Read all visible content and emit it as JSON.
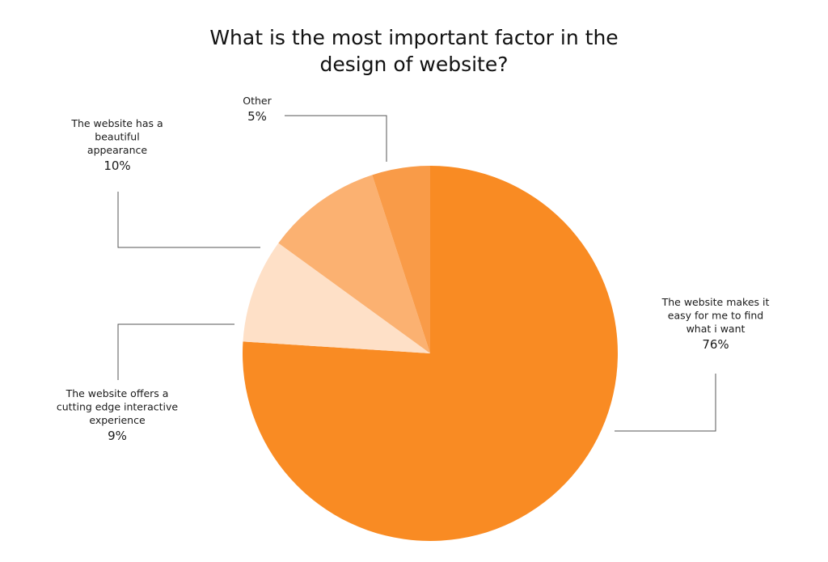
{
  "chart_data": {
    "type": "pie",
    "title": [
      "What is the most important factor in the",
      "design of website?"
    ],
    "slices": [
      {
        "name_lines": [
          "The website makes it",
          "easy for me to find",
          "what i want"
        ],
        "value": 76,
        "value_label": "76%",
        "color": "#F98B23"
      },
      {
        "name_lines": [
          "The website offers a",
          "cutting edge interactive",
          "experience"
        ],
        "value": 9,
        "value_label": "9%",
        "color": "#FEE0C7"
      },
      {
        "name_lines": [
          "The website has a",
          "beautiful",
          "appearance"
        ],
        "value": 10,
        "value_label": "10%",
        "color": "#FBB171"
      },
      {
        "name_lines": [
          "Other"
        ],
        "value": 5,
        "value_label": "5%",
        "color": "#F99B48"
      }
    ],
    "start": "top, clockwise",
    "legend": "none (callout labels)"
  }
}
